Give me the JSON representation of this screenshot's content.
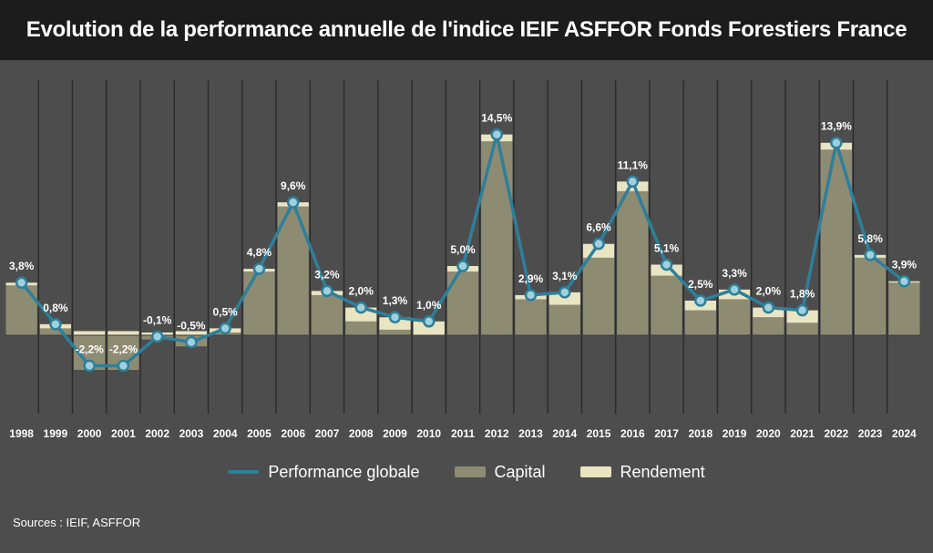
{
  "title": "Evolution de la performance annuelle de l'indice IEIF ASFFOR Fonds Forestiers France",
  "source": "Sources : IEIF, ASFFOR",
  "legend": {
    "performance": "Performance globale",
    "capital": "Capital",
    "rendement": "Rendement"
  },
  "colors": {
    "background": "#4d4d4d",
    "title_bar": "#1c1c1c",
    "performance_line": "#2e7f9a",
    "performance_marker": "#9fd0dc",
    "capital": "#8e8b73",
    "rendement": "#e9e4c2",
    "gridline": "#2a2a2a"
  },
  "chart_data": {
    "type": "bar",
    "categories": [
      "1998",
      "1999",
      "2000",
      "2001",
      "2002",
      "2003",
      "2004",
      "2005",
      "2006",
      "2007",
      "2008",
      "2009",
      "2010",
      "2011",
      "2012",
      "2013",
      "2014",
      "2015",
      "2016",
      "2017",
      "2018",
      "2019",
      "2020",
      "2021",
      "2022",
      "2023",
      "2024"
    ],
    "series": [
      {
        "name": "Performance globale",
        "type": "line",
        "values": [
          3.8,
          0.8,
          -2.2,
          -2.2,
          -0.1,
          -0.5,
          0.5,
          4.8,
          9.6,
          3.2,
          2.0,
          1.3,
          1.0,
          5.0,
          14.5,
          2.9,
          3.1,
          6.6,
          11.1,
          5.1,
          2.5,
          3.3,
          2.0,
          1.8,
          13.9,
          5.8,
          3.9
        ]
      },
      {
        "name": "Capital",
        "type": "bar",
        "values": [
          3.6,
          0.5,
          -2.5,
          -2.5,
          -0.3,
          -0.8,
          0.2,
          4.6,
          9.3,
          2.9,
          1.0,
          0.4,
          0.0,
          4.6,
          14.0,
          2.6,
          2.2,
          5.6,
          10.4,
          4.3,
          1.8,
          2.6,
          1.3,
          0.9,
          13.4,
          5.6,
          3.8
        ]
      },
      {
        "name": "Rendement",
        "type": "bar",
        "values": [
          0.2,
          0.3,
          0.3,
          0.3,
          0.2,
          0.3,
          0.3,
          0.2,
          0.3,
          0.3,
          1.0,
          0.9,
          1.0,
          0.4,
          0.5,
          0.3,
          0.9,
          1.0,
          0.7,
          0.8,
          0.7,
          0.7,
          0.7,
          0.9,
          0.5,
          0.2,
          0.1
        ]
      }
    ],
    "labels": [
      "3,8%",
      "0,8%",
      "-2,2%",
      "-2,2%",
      "-0,1%",
      "-0,5%",
      "0,5%",
      "4,8%",
      "9,6%",
      "3,2%",
      "2,0%",
      "1,3%",
      "1,0%",
      "5,0%",
      "14,5%",
      "2,9%",
      "3,1%",
      "6,6%",
      "11,1%",
      "5,1%",
      "2,5%",
      "3,3%",
      "2,0%",
      "1,8%",
      "13,9%",
      "5,8%",
      "3,9%"
    ],
    "ylim": [
      -5.5,
      17
    ],
    "grid": "vertical",
    "legend_position": "bottom"
  }
}
